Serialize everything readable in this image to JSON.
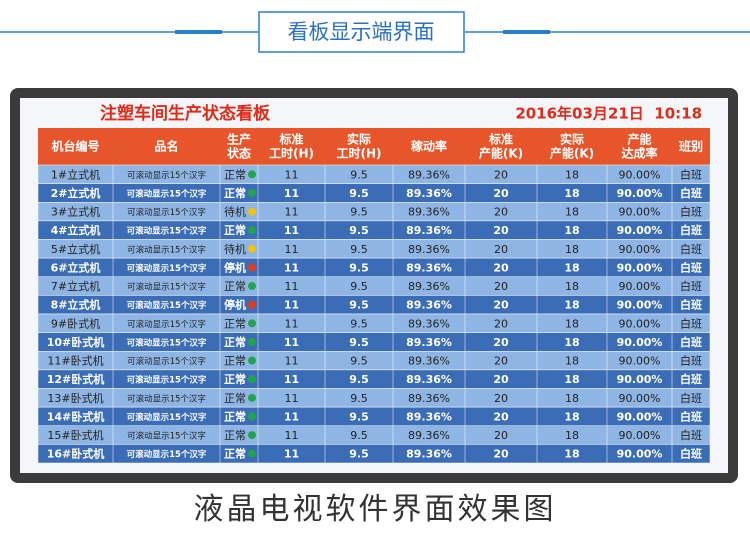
{
  "header": {
    "title": "看板显示端界面"
  },
  "board": {
    "title": "注塑车间生产状态看板",
    "datetime": "2016年03月21日  10:18",
    "columns": [
      "机台编号",
      "品名",
      "生产\n状态",
      "标准\n工时(H)",
      "实际\n工时(H)",
      "稼动率",
      "标准\n产能(K)",
      "实际\n产能(K)",
      "产能\n达成率",
      "班别"
    ],
    "rows": [
      {
        "cells": [
          "1#立式机",
          "可滚动显示15个汉字",
          "正常",
          "11",
          "9.5",
          "89.36%",
          "20",
          "18",
          "90.00%",
          "白班"
        ],
        "dot": "#1fa64a"
      },
      {
        "cells": [
          "2#立式机",
          "可滚动显示15个汉字",
          "正常",
          "11",
          "9.5",
          "89.36%",
          "20",
          "18",
          "90.00%",
          "白班"
        ],
        "dot": "#1fa64a"
      },
      {
        "cells": [
          "3#立式机",
          "可滚动显示15个汉字",
          "待机",
          "11",
          "9.5",
          "89.36%",
          "20",
          "18",
          "90.00%",
          "白班"
        ],
        "dot": "#f2c200"
      },
      {
        "cells": [
          "4#立式机",
          "可滚动显示15个汉字",
          "正常",
          "11",
          "9.5",
          "89.36%",
          "20",
          "18",
          "90.00%",
          "白班"
        ],
        "dot": "#1fa64a"
      },
      {
        "cells": [
          "5#立式机",
          "可滚动显示15个汉字",
          "待机",
          "11",
          "9.5",
          "89.36%",
          "20",
          "18",
          "90.00%",
          "白班"
        ],
        "dot": "#f2c200"
      },
      {
        "cells": [
          "6#立式机",
          "可滚动显示15个汉字",
          "停机",
          "11",
          "9.5",
          "89.36%",
          "20",
          "18",
          "90.00%",
          "白班"
        ],
        "dot": "#e23b1e"
      },
      {
        "cells": [
          "7#立式机",
          "可滚动显示15个汉字",
          "正常",
          "11",
          "9.5",
          "89.36%",
          "20",
          "18",
          "90.00%",
          "白班"
        ],
        "dot": "#1fa64a"
      },
      {
        "cells": [
          "8#立式机",
          "可滚动显示15个汉字",
          "停机",
          "11",
          "9.5",
          "89.36%",
          "20",
          "18",
          "90.00%",
          "白班"
        ],
        "dot": "#e23b1e"
      },
      {
        "cells": [
          "9#卧式机",
          "可滚动显示15个汉字",
          "正常",
          "11",
          "9.5",
          "89.36%",
          "20",
          "18",
          "90.00%",
          "白班"
        ],
        "dot": "#1fa64a"
      },
      {
        "cells": [
          "10#卧式机",
          "可滚动显示15个汉字",
          "正常",
          "11",
          "9.5",
          "89.36%",
          "20",
          "18",
          "90.00%",
          "白班"
        ],
        "dot": "#1fa64a"
      },
      {
        "cells": [
          "11#卧式机",
          "可滚动显示15个汉字",
          "正常",
          "11",
          "9.5",
          "89.36%",
          "20",
          "18",
          "90.00%",
          "白班"
        ],
        "dot": "#1fa64a"
      },
      {
        "cells": [
          "12#卧式机",
          "可滚动显示15个汉字",
          "正常",
          "11",
          "9.5",
          "89.36%",
          "20",
          "18",
          "90.00%",
          "白班"
        ],
        "dot": "#1fa64a"
      },
      {
        "cells": [
          "13#卧式机",
          "可滚动显示15个汉字",
          "正常",
          "11",
          "9.5",
          "89.36%",
          "20",
          "18",
          "90.00%",
          "白班"
        ],
        "dot": "#1fa64a"
      },
      {
        "cells": [
          "14#卧式机",
          "可滚动显示15个汉字",
          "正常",
          "11",
          "9.5",
          "89.36%",
          "20",
          "18",
          "90.00%",
          "白班"
        ],
        "dot": "#1fa64a"
      },
      {
        "cells": [
          "15#卧式机",
          "可滚动显示15个汉字",
          "正常",
          "11",
          "9.5",
          "89.36%",
          "20",
          "18",
          "90.00%",
          "白班"
        ],
        "dot": "#1fa64a"
      },
      {
        "cells": [
          "16#卧式机",
          "可滚动显示15个汉字",
          "正常",
          "11",
          "9.5",
          "89.36%",
          "20",
          "18",
          "90.00%",
          "白班"
        ],
        "dot": "#1fa64a"
      }
    ]
  },
  "footer": {
    "caption": "液晶电视软件界面效果图"
  }
}
